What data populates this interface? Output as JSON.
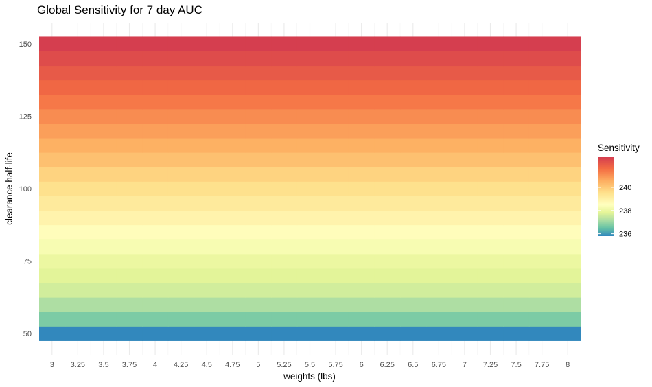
{
  "chart_data": {
    "type": "heatmap",
    "title": "Global Sensitivity for 7 day AUC",
    "xlabel": "weights (lbs)",
    "ylabel": "clearance half-life",
    "x": [
      3,
      3.25,
      3.5,
      3.75,
      4,
      4.25,
      4.5,
      4.75,
      5,
      5.25,
      5.5,
      5.75,
      6,
      6.25,
      6.5,
      6.75,
      7,
      7.25,
      7.5,
      7.75,
      8
    ],
    "x_tick_labels": [
      "3",
      "3.25",
      "3.5",
      "3.75",
      "4",
      "4.25",
      "4.5",
      "4.75",
      "5",
      "5.25",
      "5.5",
      "5.75",
      "6",
      "6.25",
      "6.5",
      "6.75",
      "7",
      "7.25",
      "7.5",
      "7.75",
      "8"
    ],
    "y": [
      50,
      55,
      60,
      65,
      70,
      75,
      80,
      85,
      90,
      95,
      100,
      105,
      110,
      115,
      120,
      125,
      130,
      135,
      140,
      145,
      150
    ],
    "y_ticks": [
      50,
      75,
      100,
      125,
      150
    ],
    "y_tick_labels": [
      "50",
      "75",
      "100",
      "125",
      "150"
    ],
    "ylim": [
      47.5,
      152.5
    ],
    "row_values": [
      235.8,
      236.7,
      237.2,
      237.6,
      237.8,
      238.0,
      238.3,
      238.6,
      238.9,
      239.2,
      239.5,
      239.8,
      240.2,
      240.5,
      240.8,
      241.1,
      241.4,
      241.7,
      242.0,
      242.3,
      242.6
    ],
    "color_range": [
      235.8,
      242.6
    ],
    "grid": true,
    "legend": {
      "title": "Sensitivity",
      "placement": "right",
      "ticks": [
        236,
        238,
        240
      ],
      "tick_labels": [
        "236",
        "238",
        "240"
      ]
    }
  }
}
